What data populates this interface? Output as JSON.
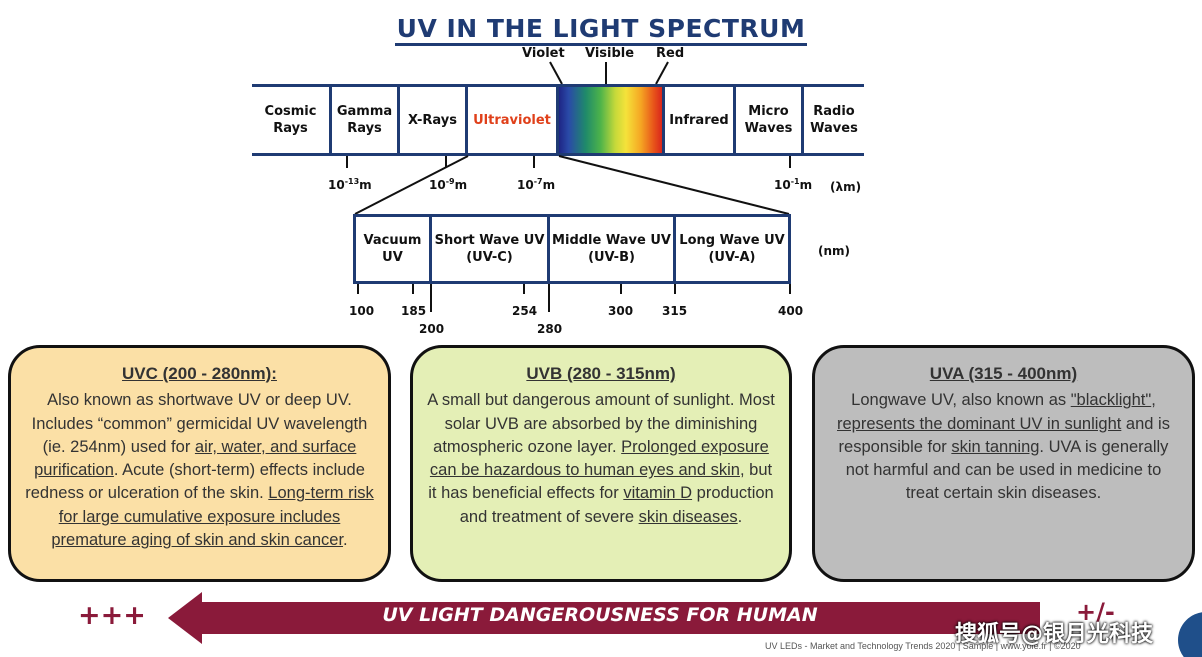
{
  "title": "UV IN THE LIGHT SPECTRUM",
  "visible_labels": {
    "violet": "Violet",
    "visible": "Visible",
    "red": "Red"
  },
  "spectrum": [
    {
      "l1": "Cosmic",
      "l2": "Rays"
    },
    {
      "l1": "Gamma",
      "l2": "Rays"
    },
    {
      "l1": "X-Rays",
      "l2": ""
    },
    {
      "l1": "Ultraviolet",
      "l2": ""
    },
    {
      "l1": "Infrared",
      "l2": ""
    },
    {
      "l1": "Micro",
      "l2": "Waves"
    },
    {
      "l1": "Radio",
      "l2": "Waves"
    }
  ],
  "wavelength_ticks": [
    {
      "base": "10",
      "exp": "-13",
      "unit": "m"
    },
    {
      "base": "10",
      "exp": "-9",
      "unit": "m"
    },
    {
      "base": "10",
      "exp": "-7",
      "unit": "m"
    },
    {
      "base": "10",
      "exp": "-1",
      "unit": "m"
    }
  ],
  "lambda_unit": "(λm)",
  "uv_bands": [
    {
      "l1": "Vacuum",
      "l2": "UV"
    },
    {
      "l1": "Short Wave UV",
      "l2": "(UV-C)"
    },
    {
      "l1": "Middle Wave UV",
      "l2": "(UV-B)"
    },
    {
      "l1": "Long Wave UV",
      "l2": "(UV-A)"
    }
  ],
  "nm_unit": "(nm)",
  "nm_ticks": [
    "100",
    "185",
    "200",
    "254",
    "280",
    "300",
    "315",
    "400"
  ],
  "cards": {
    "uvc": {
      "heading": "UVC (200 - 280nm):",
      "t1": "Also known as shortwave UV or deep UV. Includes “common” germicidal UV wavelength (ie. 254nm) used for ",
      "u1": "air, water, and surface purification",
      "t2": ". Acute (short-term) effects include redness or ulceration of the skin. ",
      "u2": "Long-term risk for large cumulative exposure includes premature aging of skin and skin cancer",
      "t3": "."
    },
    "uvb": {
      "heading": "UVB (280 - 315nm)",
      "t1": "A small but dangerous amount of sunlight. Most solar UVB are absorbed by the diminishing atmospheric ozone layer. ",
      "u1": "Prolonged exposure can be hazardous to human eyes and skin",
      "t2": ", but it has beneficial effects for ",
      "u2": "vitamin D",
      "t3": "  production and treatment of severe ",
      "u3": "skin diseases",
      "t4": "."
    },
    "uva": {
      "heading": "UVA (315 - 400nm)",
      "t1": "Longwave UV, also known as ",
      "u1": "\"blacklight\"",
      "t2": ", ",
      "u2": "represents the dominant UV in sunlight",
      "t3": " and is responsible for ",
      "u3": "skin tanning",
      "t4": ". UVA is generally not harmful and can be used in medicine to treat certain skin diseases."
    }
  },
  "arrow": {
    "label": "UV LIGHT DANGEROUSNESS FOR HUMAN",
    "plus_left": "+++",
    "plus_right": "+/-"
  },
  "footer": "UV LEDs - Market and Technology Trends 2020 | Sample | www.yole.fr | ©2020",
  "watermark": "搜狐号@银月光科技",
  "colors": {
    "navy": "#1f3b73",
    "ultraviolet_label": "#e0401a",
    "arrow": "#8a1a3a",
    "uvc_card": "#fbe0a6",
    "uvb_card": "#e4efb6",
    "uva_card": "#bdbdbd"
  }
}
